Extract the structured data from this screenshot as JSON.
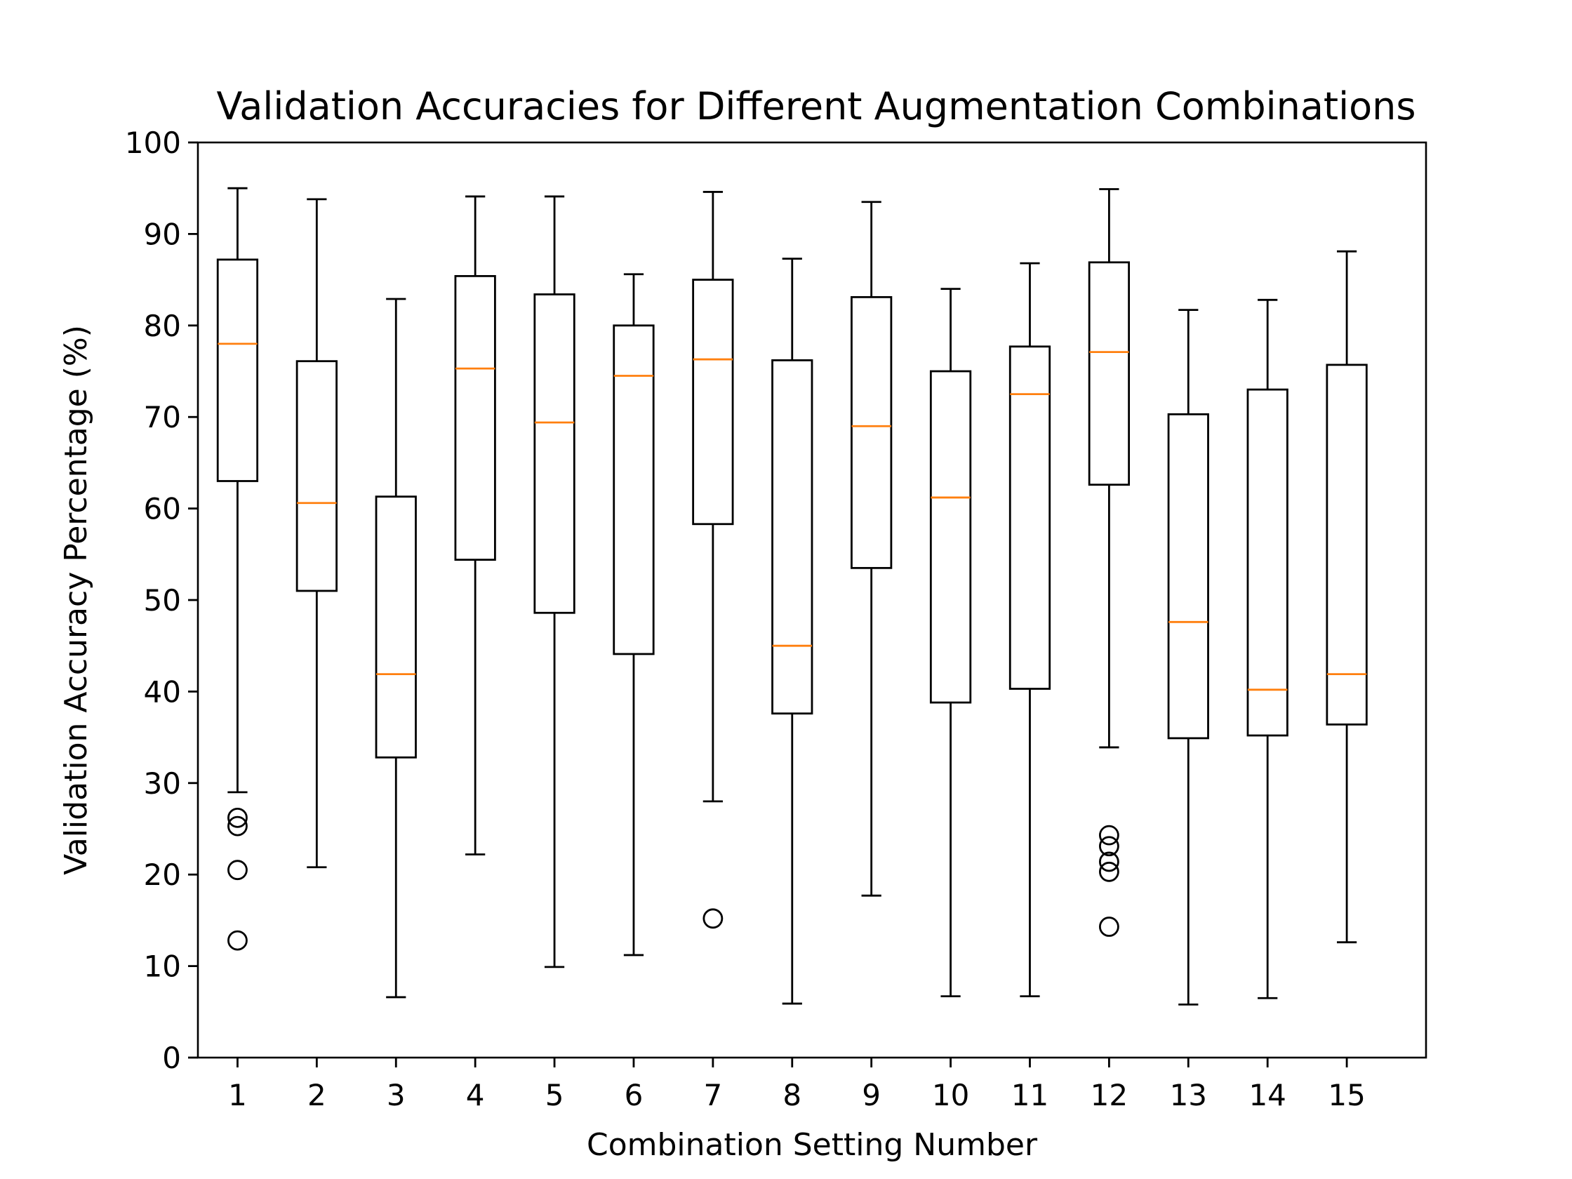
{
  "chart_data": {
    "type": "boxplot",
    "title": "Validation Accuracies for Different Augmentation Combinations",
    "xlabel": "Combination Setting Number",
    "ylabel": "Validation Accuracy Percentage (%)",
    "ylim": [
      0,
      100
    ],
    "yticks": [
      0,
      10,
      20,
      30,
      40,
      50,
      60,
      70,
      80,
      90,
      100
    ],
    "categories": [
      "1",
      "2",
      "3",
      "4",
      "5",
      "6",
      "7",
      "8",
      "9",
      "10",
      "11",
      "12",
      "13",
      "14",
      "15"
    ],
    "grid": false,
    "legend": "none",
    "colors": {
      "box": "#000000",
      "median": "#ff7f0e",
      "outlier": "#000000"
    },
    "boxes": [
      {
        "whisker_low": 29.0,
        "q1": 63.0,
        "median": 78.0,
        "q3": 87.2,
        "whisker_high": 95.0,
        "outliers": [
          26.2,
          25.3,
          20.5,
          12.8
        ]
      },
      {
        "whisker_low": 20.8,
        "q1": 51.0,
        "median": 60.6,
        "q3": 76.1,
        "whisker_high": 93.8,
        "outliers": []
      },
      {
        "whisker_low": 6.6,
        "q1": 32.8,
        "median": 41.9,
        "q3": 61.3,
        "whisker_high": 82.9,
        "outliers": []
      },
      {
        "whisker_low": 22.2,
        "q1": 54.4,
        "median": 75.3,
        "q3": 85.4,
        "whisker_high": 94.1,
        "outliers": []
      },
      {
        "whisker_low": 9.9,
        "q1": 48.6,
        "median": 69.4,
        "q3": 83.4,
        "whisker_high": 94.1,
        "outliers": []
      },
      {
        "whisker_low": 11.2,
        "q1": 44.1,
        "median": 74.5,
        "q3": 80.0,
        "whisker_high": 85.6,
        "outliers": []
      },
      {
        "whisker_low": 28.0,
        "q1": 58.3,
        "median": 76.3,
        "q3": 85.0,
        "whisker_high": 94.6,
        "outliers": [
          15.2
        ]
      },
      {
        "whisker_low": 5.9,
        "q1": 37.6,
        "median": 45.0,
        "q3": 76.2,
        "whisker_high": 87.3,
        "outliers": []
      },
      {
        "whisker_low": 17.7,
        "q1": 53.5,
        "median": 69.0,
        "q3": 83.1,
        "whisker_high": 93.5,
        "outliers": []
      },
      {
        "whisker_low": 6.7,
        "q1": 38.8,
        "median": 61.2,
        "q3": 75.0,
        "whisker_high": 84.0,
        "outliers": []
      },
      {
        "whisker_low": 6.7,
        "q1": 40.3,
        "median": 72.5,
        "q3": 77.7,
        "whisker_high": 86.8,
        "outliers": []
      },
      {
        "whisker_low": 33.9,
        "q1": 62.6,
        "median": 77.1,
        "q3": 86.9,
        "whisker_high": 94.9,
        "outliers": [
          24.3,
          23.1,
          21.4,
          20.3,
          14.3
        ]
      },
      {
        "whisker_low": 5.8,
        "q1": 34.9,
        "median": 47.6,
        "q3": 70.3,
        "whisker_high": 81.7,
        "outliers": []
      },
      {
        "whisker_low": 6.5,
        "q1": 35.2,
        "median": 40.2,
        "q3": 73.0,
        "whisker_high": 82.8,
        "outliers": []
      },
      {
        "whisker_low": 12.6,
        "q1": 36.4,
        "median": 41.9,
        "q3": 75.7,
        "whisker_high": 88.1,
        "outliers": []
      }
    ]
  }
}
